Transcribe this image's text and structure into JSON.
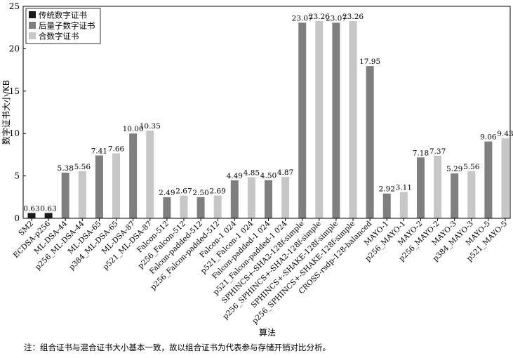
{
  "chart_data": {
    "type": "bar",
    "xlabel": "算法",
    "ylabel": "数字证书大小/KB",
    "ylim": [
      0,
      25
    ],
    "yticks": [
      "0",
      "5",
      "10",
      "15",
      "20",
      "25"
    ],
    "grid": false,
    "legend_position": "top-left",
    "series": [
      {
        "name": "传统数字证书",
        "color": "#1a1a1a"
      },
      {
        "name": "后量子数字证书",
        "color": "#7f7f7f"
      },
      {
        "name": "合数字证书",
        "color": "#c7c7c7"
      }
    ],
    "bars": [
      {
        "category": "SM2",
        "series": 0,
        "value": 0.63,
        "label": "0.63"
      },
      {
        "category": "ECDSA-p256",
        "series": 0,
        "value": 0.63,
        "label": "0.63"
      },
      {
        "category": "ML-DSA-44",
        "series": 1,
        "value": 5.38,
        "label": "5.38"
      },
      {
        "category": "p256_ML-DSA-44",
        "series": 2,
        "value": 5.56,
        "label": "5.56"
      },
      {
        "category": "ML-DSA-65",
        "series": 1,
        "value": 7.41,
        "label": "7.41"
      },
      {
        "category": "p384_ML-DSA-65",
        "series": 2,
        "value": 7.66,
        "label": "7.66"
      },
      {
        "category": "ML-DSA-87",
        "series": 1,
        "value": 10.0,
        "label": "10.00"
      },
      {
        "category": "p521_ML-DSA-87",
        "series": 2,
        "value": 10.35,
        "label": "10.35"
      },
      {
        "category": "Falcon-512",
        "series": 1,
        "value": 2.49,
        "label": "2.49"
      },
      {
        "category": "p256_Falcon-512",
        "series": 2,
        "value": 2.67,
        "label": "2.67"
      },
      {
        "category": "Falcon-padded-512",
        "series": 1,
        "value": 2.5,
        "label": "2.50"
      },
      {
        "category": "p256_Falcon-padded-512",
        "series": 2,
        "value": 2.69,
        "label": "2.69"
      },
      {
        "category": "Falcon-1 024",
        "series": 1,
        "value": 4.49,
        "label": "4.49"
      },
      {
        "category": "p521_Falcon-1 024",
        "series": 2,
        "value": 4.85,
        "label": "4.85"
      },
      {
        "category": "Falcon-padded-1 024",
        "series": 1,
        "value": 4.5,
        "label": "4.50"
      },
      {
        "category": "p521_Falcon-padded-1 024",
        "series": 2,
        "value": 4.87,
        "label": "4.87"
      },
      {
        "category": "SPHINCS+-SHA2-128f-simple",
        "series": 1,
        "value": 23.07,
        "label": "23.07"
      },
      {
        "category": "p256_SPHINCS+-SHA2-128f-simple",
        "series": 2,
        "value": 23.26,
        "label": "23.26"
      },
      {
        "category": "SPHINCS+-SHAKE-128f-simple",
        "series": 1,
        "value": 23.07,
        "label": "23.07"
      },
      {
        "category": "p256_SPHINCS+-SHAKE-128f-simple",
        "series": 2,
        "value": 23.26,
        "label": "23.26"
      },
      {
        "category": "CROSS-rsdp-128-balanced",
        "series": 1,
        "value": 17.95,
        "label": "17.95"
      },
      {
        "category": "MAYO-1",
        "series": 1,
        "value": 2.92,
        "label": "2.92"
      },
      {
        "category": "p256_MAYO-1",
        "series": 2,
        "value": 3.11,
        "label": "3.11"
      },
      {
        "category": "MAYO-2",
        "series": 1,
        "value": 7.18,
        "label": "7.18"
      },
      {
        "category": "p256_MAYO-2",
        "series": 2,
        "value": 7.37,
        "label": "7.37"
      },
      {
        "category": "MAYO-3",
        "series": 1,
        "value": 5.29,
        "label": "5.29"
      },
      {
        "category": "p384_MAYO-3",
        "series": 2,
        "value": 5.56,
        "label": "5.56"
      },
      {
        "category": "MAYO-5",
        "series": 1,
        "value": 9.06,
        "label": "9.06"
      },
      {
        "category": "p521_MAYO-5",
        "series": 2,
        "value": 9.43,
        "label": "9.43"
      }
    ]
  },
  "note": "注：组合证书与混合证书大小基本一致，故以组合证书为代表参与存储开销对比分析。"
}
